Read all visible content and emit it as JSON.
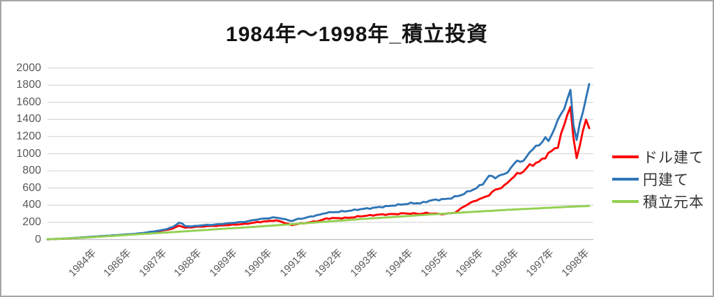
{
  "title": "1984年～1998年_積立投資",
  "legend": [
    {
      "label": "ドル建て",
      "color": "#FF0000"
    },
    {
      "label": "円建て",
      "color": "#2E75B6"
    },
    {
      "label": "積立元本",
      "color": "#92D050"
    }
  ],
  "colors": {
    "gridline": "#D9D9D9",
    "axis_line": "#BFBFBF",
    "axis_text": "#595959",
    "frame_border": "#A6A6A6"
  },
  "chart_data": {
    "type": "line",
    "title": "1984年～1998年_積立投資",
    "xlabel": "",
    "ylabel": "",
    "ylim": [
      0,
      2000
    ],
    "y_ticks": [
      0,
      200,
      400,
      600,
      800,
      1000,
      1200,
      1400,
      1600,
      1800,
      2000
    ],
    "x_tick_labels": [
      "1984年",
      "1986年",
      "1987年",
      "1988年",
      "1989年",
      "1990年",
      "1991年",
      "1992年",
      "1993年",
      "1994年",
      "1995年",
      "1996年",
      "1996年",
      "1997年",
      "1998年"
    ],
    "x_unit": "month_index_1984_to_1998",
    "x_range": [
      0,
      173
    ],
    "grid": true,
    "legend_position": "right",
    "series": [
      {
        "name": "ドル建て",
        "color": "#FF0000",
        "volatility": 0.032,
        "keypoints": [
          [
            0,
            2
          ],
          [
            6,
            11
          ],
          [
            11,
            21
          ],
          [
            16,
            33
          ],
          [
            20,
            42
          ],
          [
            24,
            52
          ],
          [
            28,
            61
          ],
          [
            31,
            72
          ],
          [
            34,
            88
          ],
          [
            36,
            100
          ],
          [
            38,
            112
          ],
          [
            40,
            128
          ],
          [
            41,
            142
          ],
          [
            42,
            162
          ],
          [
            43,
            150
          ],
          [
            44,
            136
          ],
          [
            46,
            142
          ],
          [
            48,
            148
          ],
          [
            50,
            154
          ],
          [
            53,
            159
          ],
          [
            57,
            166
          ],
          [
            60,
            173
          ],
          [
            63,
            181
          ],
          [
            67,
            203
          ],
          [
            70,
            212
          ],
          [
            72,
            221
          ],
          [
            74,
            214
          ],
          [
            76,
            190
          ],
          [
            78,
            168
          ],
          [
            80,
            182
          ],
          [
            82,
            192
          ],
          [
            84,
            203
          ],
          [
            87,
            218
          ],
          [
            89,
            242
          ],
          [
            92,
            248
          ],
          [
            95,
            252
          ],
          [
            98,
            262
          ],
          [
            100,
            272
          ],
          [
            103,
            279
          ],
          [
            106,
            288
          ],
          [
            109,
            294
          ],
          [
            111,
            298
          ],
          [
            114,
            306
          ],
          [
            117,
            301
          ],
          [
            119,
            297
          ],
          [
            121,
            306
          ],
          [
            123,
            302
          ],
          [
            125,
            298
          ],
          [
            128,
            303
          ],
          [
            130,
            315
          ],
          [
            131,
            330
          ],
          [
            133,
            386
          ],
          [
            135,
            420
          ],
          [
            137,
            459
          ],
          [
            139,
            482
          ],
          [
            141,
            524
          ],
          [
            143,
            581
          ],
          [
            146,
            625
          ],
          [
            148,
            703
          ],
          [
            150,
            756
          ],
          [
            152,
            792
          ],
          [
            154,
            866
          ],
          [
            157,
            908
          ],
          [
            159,
            972
          ],
          [
            160,
            1000
          ],
          [
            161,
            1028
          ],
          [
            162,
            1060
          ],
          [
            163,
            1085
          ],
          [
            164,
            1200
          ],
          [
            165,
            1330
          ],
          [
            166,
            1450
          ],
          [
            167,
            1557
          ],
          [
            168,
            1150
          ],
          [
            169,
            963
          ],
          [
            170,
            1100
          ],
          [
            171,
            1280
          ],
          [
            172,
            1375
          ],
          [
            173,
            1335
          ]
        ]
      },
      {
        "name": "円建て",
        "color": "#2E75B6",
        "volatility": 0.026,
        "keypoints": [
          [
            0,
            2
          ],
          [
            6,
            12
          ],
          [
            11,
            24
          ],
          [
            16,
            36
          ],
          [
            20,
            46
          ],
          [
            24,
            56
          ],
          [
            28,
            66
          ],
          [
            31,
            78
          ],
          [
            34,
            95
          ],
          [
            36,
            105
          ],
          [
            38,
            122
          ],
          [
            40,
            145
          ],
          [
            41,
            168
          ],
          [
            42,
            197
          ],
          [
            43,
            183
          ],
          [
            44,
            156
          ],
          [
            46,
            152
          ],
          [
            48,
            160
          ],
          [
            50,
            168
          ],
          [
            53,
            173
          ],
          [
            57,
            185
          ],
          [
            60,
            196
          ],
          [
            63,
            206
          ],
          [
            67,
            235
          ],
          [
            70,
            246
          ],
          [
            72,
            255
          ],
          [
            74,
            250
          ],
          [
            76,
            232
          ],
          [
            78,
            216
          ],
          [
            80,
            240
          ],
          [
            82,
            250
          ],
          [
            84,
            268
          ],
          [
            87,
            288
          ],
          [
            89,
            310
          ],
          [
            92,
            320
          ],
          [
            95,
            330
          ],
          [
            98,
            345
          ],
          [
            100,
            354
          ],
          [
            103,
            362
          ],
          [
            106,
            376
          ],
          [
            109,
            390
          ],
          [
            111,
            402
          ],
          [
            114,
            414
          ],
          [
            117,
            424
          ],
          [
            119,
            419
          ],
          [
            121,
            440
          ],
          [
            123,
            459
          ],
          [
            128,
            477
          ],
          [
            132,
            516
          ],
          [
            137,
            597
          ],
          [
            139,
            650
          ],
          [
            141,
            744
          ],
          [
            143,
            729
          ],
          [
            146,
            762
          ],
          [
            148,
            825
          ],
          [
            150,
            920
          ],
          [
            152,
            902
          ],
          [
            154,
            1028
          ],
          [
            157,
            1110
          ],
          [
            159,
            1190
          ],
          [
            160,
            1140
          ],
          [
            161,
            1232
          ],
          [
            162,
            1300
          ],
          [
            163,
            1378
          ],
          [
            164,
            1455
          ],
          [
            165,
            1530
          ],
          [
            166,
            1625
          ],
          [
            167,
            1720
          ],
          [
            168,
            1340
          ],
          [
            169,
            1170
          ],
          [
            170,
            1350
          ],
          [
            171,
            1480
          ],
          [
            172,
            1680
          ],
          [
            173,
            1822
          ]
        ]
      },
      {
        "name": "積立元本",
        "color": "#92D050",
        "volatility": 0.004,
        "keypoints": [
          [
            0,
            2
          ],
          [
            11,
            20
          ],
          [
            22,
            45
          ],
          [
            33,
            70
          ],
          [
            44,
            95
          ],
          [
            55,
            122
          ],
          [
            67,
            150
          ],
          [
            78,
            178
          ],
          [
            89,
            208
          ],
          [
            100,
            238
          ],
          [
            112,
            266
          ],
          [
            123,
            293
          ],
          [
            134,
            318
          ],
          [
            145,
            342
          ],
          [
            157,
            364
          ],
          [
            168,
            384
          ],
          [
            173,
            391
          ]
        ]
      }
    ]
  }
}
